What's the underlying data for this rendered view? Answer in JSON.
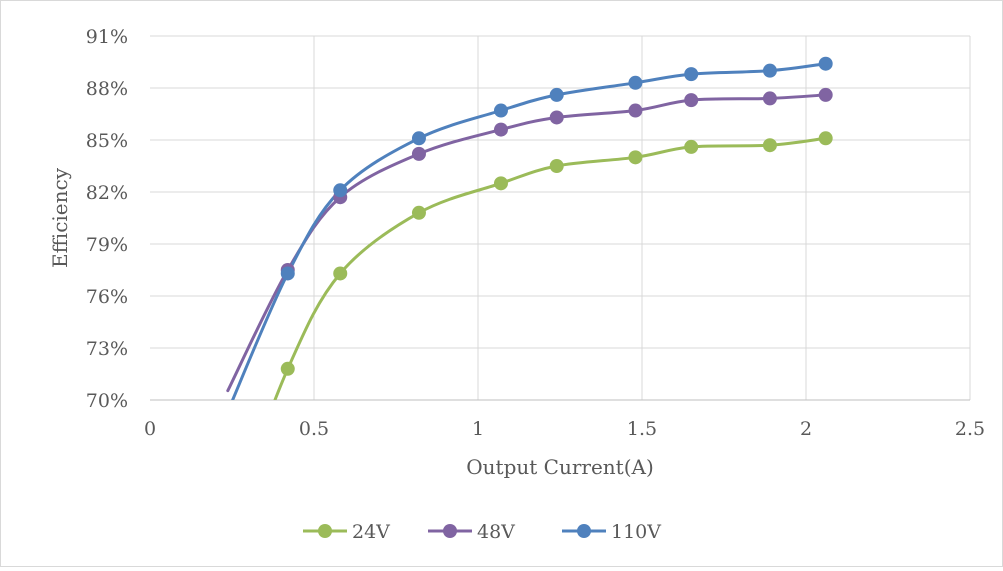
{
  "chart_data": {
    "type": "line",
    "title": "",
    "xlabel": "Output Current(A)",
    "ylabel": "Efficiency",
    "xlim": [
      0,
      2.5
    ],
    "ylim": [
      0.7,
      0.91
    ],
    "x_ticks": [
      0,
      0.5,
      1,
      1.5,
      2,
      2.5
    ],
    "x_tick_labels": [
      "0",
      "0.5",
      "1",
      "1.5",
      "2",
      "2.5"
    ],
    "y_ticks": [
      0.7,
      0.73,
      0.76,
      0.79,
      0.82,
      0.85,
      0.88,
      0.91
    ],
    "y_tick_labels": [
      "70%",
      "73%",
      "76%",
      "79%",
      "82%",
      "85%",
      "88%",
      "91%"
    ],
    "grid": true,
    "legend_position": "bottom",
    "series": [
      {
        "name": "24V",
        "color": "#9BBB59",
        "x": [
          0.42,
          0.58,
          0.82,
          1.07,
          1.24,
          1.48,
          1.65,
          1.89,
          2.06
        ],
        "y": [
          0.718,
          0.773,
          0.808,
          0.825,
          0.835,
          0.84,
          0.846,
          0.847,
          0.851
        ]
      },
      {
        "name": "48V",
        "color": "#8064A2",
        "x": [
          0.42,
          0.58,
          0.82,
          1.07,
          1.24,
          1.48,
          1.65,
          1.89,
          2.06
        ],
        "y": [
          0.775,
          0.817,
          0.842,
          0.856,
          0.863,
          0.867,
          0.873,
          0.874,
          0.876
        ]
      },
      {
        "name": "110V",
        "color": "#4F81BD",
        "x": [
          0.42,
          0.58,
          0.82,
          1.07,
          1.24,
          1.48,
          1.65,
          1.89,
          2.06
        ],
        "y": [
          0.773,
          0.821,
          0.851,
          0.867,
          0.876,
          0.883,
          0.888,
          0.89,
          0.894
        ]
      }
    ]
  }
}
